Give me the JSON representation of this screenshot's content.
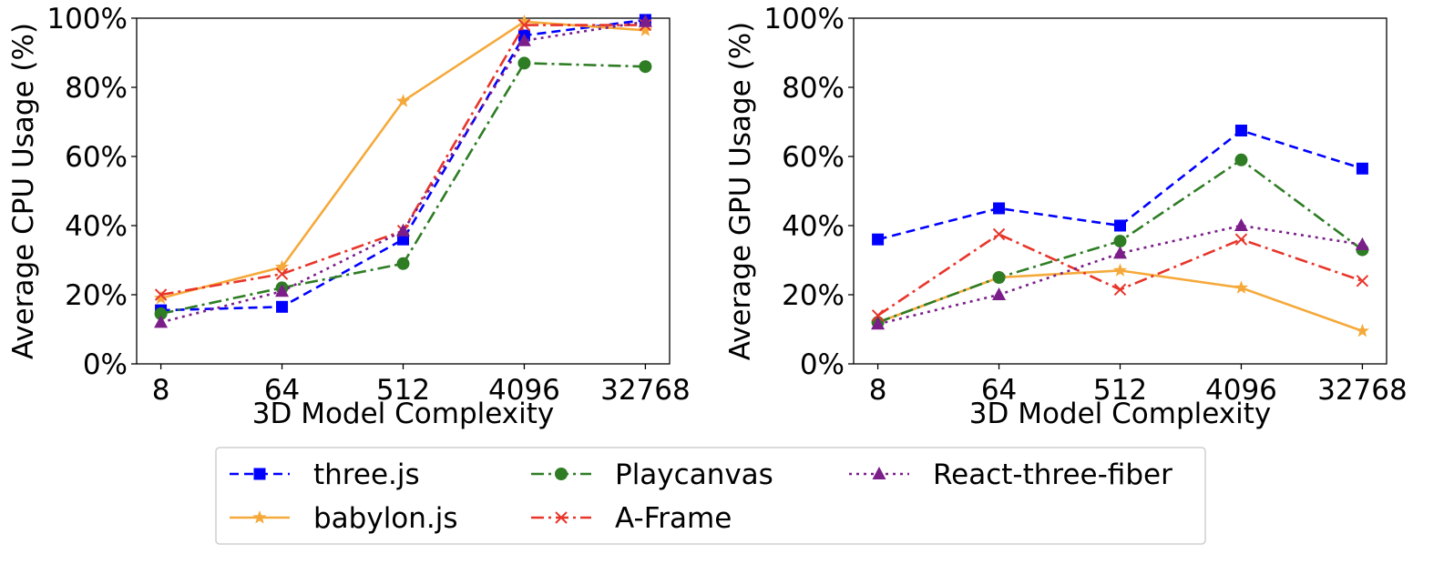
{
  "chart_data": [
    {
      "type": "line",
      "ylabel": "Average CPU Usage (%)",
      "xlabel": "3D Model Complexity",
      "categories": [
        "8",
        "64",
        "512",
        "4096",
        "32768"
      ],
      "y_ticks": [
        "0%",
        "20%",
        "40%",
        "60%",
        "80%",
        "100%"
      ],
      "ylim": [
        0,
        100
      ],
      "grid": false,
      "series": [
        {
          "name": "three.js",
          "values": [
            15.5,
            16.5,
            36,
            95,
            99.5
          ],
          "color": "#0000ff",
          "marker": "square",
          "dash": "dashed"
        },
        {
          "name": "babylon.js",
          "values": [
            19,
            28,
            76,
            99,
            96.5
          ],
          "color": "#f5a93a",
          "marker": "star",
          "dash": "solid"
        },
        {
          "name": "Playcanvas",
          "values": [
            14.5,
            22,
            29,
            87,
            86
          ],
          "color": "#2e7d24",
          "marker": "circle",
          "dash": "dashdot"
        },
        {
          "name": "A-Frame",
          "values": [
            20,
            26,
            38.5,
            98,
            98
          ],
          "color": "#e8352a",
          "marker": "x",
          "dash": "dashdot"
        },
        {
          "name": "React-three-fiber",
          "values": [
            12,
            21,
            38.5,
            93.5,
            99
          ],
          "color": "#7b1e8a",
          "marker": "triangle",
          "dash": "dotted"
        }
      ]
    },
    {
      "type": "line",
      "ylabel": "Average GPU Usage (%)",
      "xlabel": "3D Model Complexity",
      "categories": [
        "8",
        "64",
        "512",
        "4096",
        "32768"
      ],
      "y_ticks": [
        "0%",
        "20%",
        "40%",
        "60%",
        "80%",
        "100%"
      ],
      "ylim": [
        0,
        100
      ],
      "grid": false,
      "series": [
        {
          "name": "three.js",
          "values": [
            36,
            45,
            40,
            67.5,
            56.5
          ],
          "color": "#0000ff",
          "marker": "square",
          "dash": "dashed"
        },
        {
          "name": "babylon.js",
          "values": [
            12,
            25,
            27,
            22,
            9.5
          ],
          "color": "#f5a93a",
          "marker": "star",
          "dash": "solid"
        },
        {
          "name": "Playcanvas",
          "values": [
            12,
            25,
            35.5,
            59,
            33
          ],
          "color": "#2e7d24",
          "marker": "circle",
          "dash": "dashdot"
        },
        {
          "name": "A-Frame",
          "values": [
            14,
            37.5,
            21.5,
            36,
            24
          ],
          "color": "#e8352a",
          "marker": "x",
          "dash": "dashdot"
        },
        {
          "name": "React-three-fiber",
          "values": [
            11.5,
            20,
            32,
            40,
            34.5
          ],
          "color": "#7b1e8a",
          "marker": "triangle",
          "dash": "dotted"
        }
      ]
    }
  ],
  "legend": {
    "placement": "bottom-center",
    "entries": [
      "three.js",
      "Playcanvas",
      "React-three-fiber",
      "babylon.js",
      "A-Frame"
    ]
  }
}
